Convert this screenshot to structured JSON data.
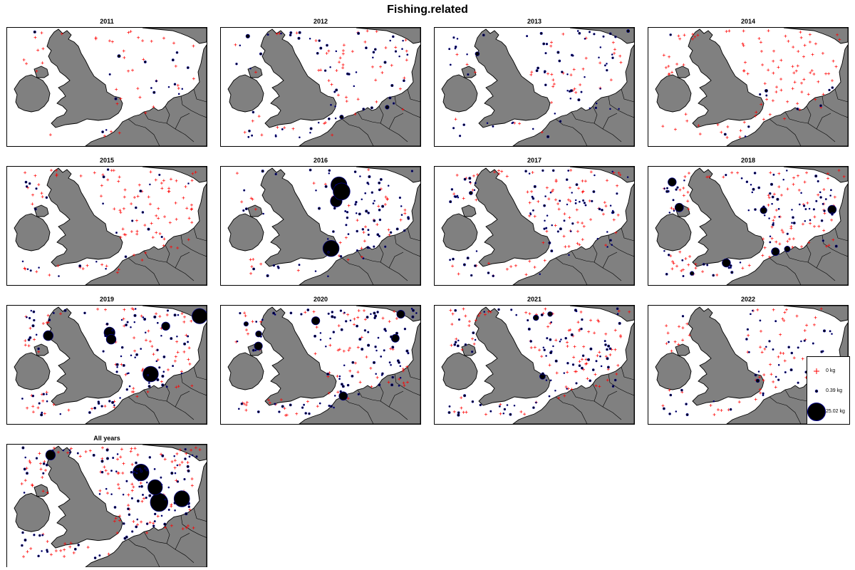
{
  "title": "Fishing.related",
  "colors": {
    "land": "#808080",
    "coast": "#000000",
    "zero_marker": "#ff0000",
    "positive_marker": "#00008b",
    "water": "#ffffff"
  },
  "panels": [
    {
      "title": "2011",
      "zero_density": 0.35,
      "pos_density": 0.15,
      "max_bubble_kg": 0.9
    },
    {
      "title": "2012",
      "zero_density": 0.45,
      "pos_density": 0.55,
      "max_bubble_kg": 1.2
    },
    {
      "title": "2013",
      "zero_density": 0.3,
      "pos_density": 0.6,
      "max_bubble_kg": 1.5
    },
    {
      "title": "2014",
      "zero_density": 0.85,
      "pos_density": 0.1,
      "max_bubble_kg": 1.0
    },
    {
      "title": "2015",
      "zero_density": 0.8,
      "pos_density": 0.25,
      "max_bubble_kg": 1.1
    },
    {
      "title": "2016",
      "zero_density": 0.35,
      "pos_density": 0.75,
      "max_bubble_kg": 25.02
    },
    {
      "title": "2017",
      "zero_density": 0.7,
      "pos_density": 0.7,
      "max_bubble_kg": 3.0
    },
    {
      "title": "2018",
      "zero_density": 0.8,
      "pos_density": 0.8,
      "max_bubble_kg": 6.0
    },
    {
      "title": "2019",
      "zero_density": 0.7,
      "pos_density": 0.85,
      "max_bubble_kg": 20.0
    },
    {
      "title": "2020",
      "zero_density": 0.6,
      "pos_density": 0.95,
      "max_bubble_kg": 6.0
    },
    {
      "title": "2021",
      "zero_density": 0.8,
      "pos_density": 0.8,
      "max_bubble_kg": 3.0
    },
    {
      "title": "2022",
      "zero_density": 0.55,
      "pos_density": 0.45,
      "max_bubble_kg": 1.0
    },
    {
      "title": "All years",
      "zero_density": 1.0,
      "pos_density": 1.0,
      "max_bubble_kg": 25.02
    }
  ],
  "legend": {
    "items": [
      {
        "label": "0 kg",
        "symbol": "cross",
        "kg": 0
      },
      {
        "label": "0.39 kg",
        "symbol": "circle",
        "kg": 0.39
      },
      {
        "label": "25.02 kg",
        "symbol": "circle",
        "kg": 25.02
      }
    ]
  }
}
